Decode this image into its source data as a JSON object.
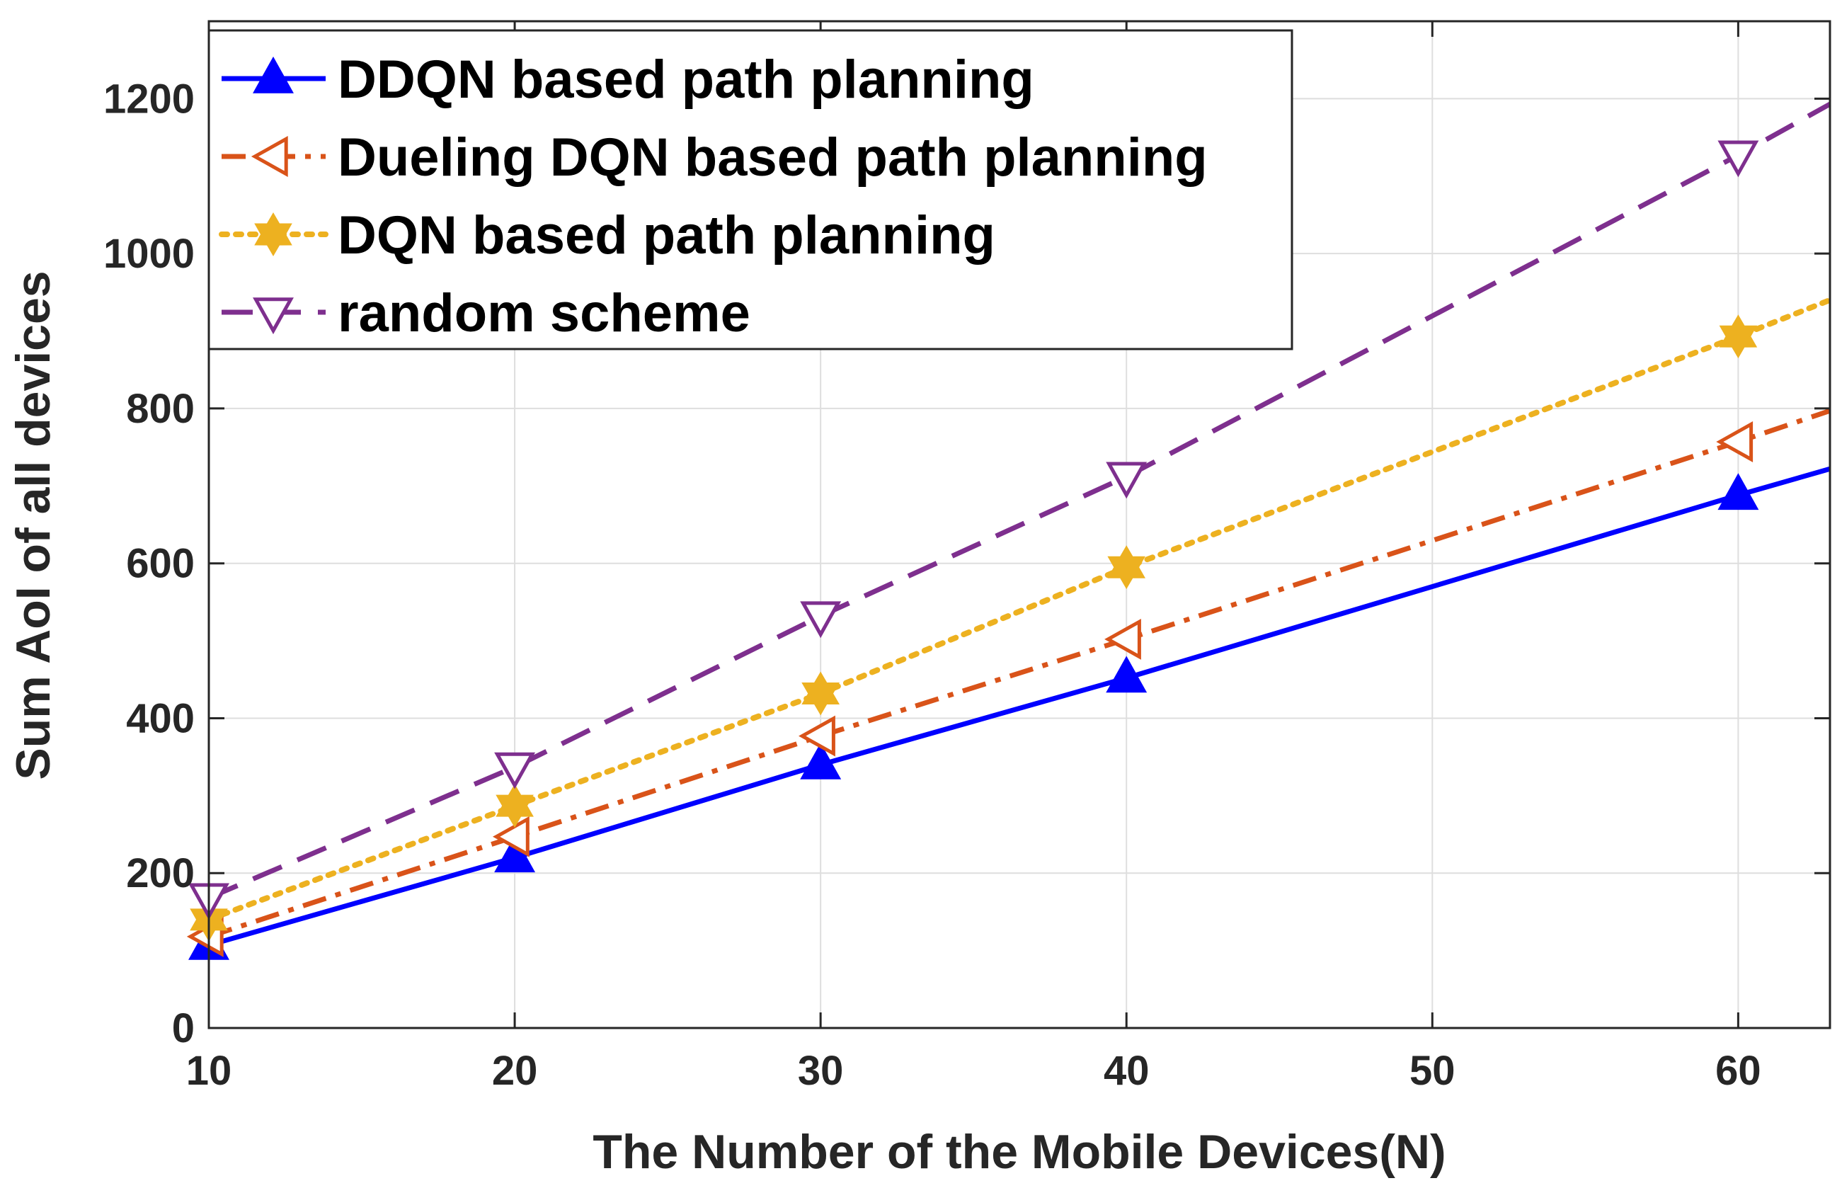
{
  "chart_data": {
    "type": "line",
    "title": "",
    "xlabel": "The Number of the Mobile Devices(N)",
    "ylabel": "Sum AoI of all devices",
    "xlim": [
      10,
      63
    ],
    "ylim": [
      0,
      1300
    ],
    "x_ticks": [
      10,
      20,
      30,
      40,
      50,
      60
    ],
    "y_ticks": [
      0,
      200,
      400,
      600,
      800,
      1000,
      1200
    ],
    "grid": true,
    "legend_position": "top-left",
    "series": [
      {
        "name": "DDQN based path planning",
        "color": "#0000ff",
        "line_style": "solid",
        "marker": "triangle-up",
        "marker_fill": "filled",
        "x": [
          10,
          20,
          30,
          40,
          60,
          63
        ],
        "values": [
          107,
          220,
          340,
          452,
          688,
          722
        ],
        "marker_points": [
          [
            10,
            107
          ],
          [
            20,
            220
          ],
          [
            30,
            340
          ],
          [
            40,
            452
          ],
          [
            60,
            688
          ]
        ]
      },
      {
        "name": "Dueling DQN based path planning",
        "color": "#d95319",
        "line_style": "dashdot",
        "marker": "triangle-left",
        "marker_fill": "open",
        "x": [
          10,
          20,
          30,
          40,
          60,
          63
        ],
        "values": [
          118,
          247,
          377,
          502,
          757,
          797
        ],
        "marker_points": [
          [
            10,
            118
          ],
          [
            20,
            247
          ],
          [
            30,
            377
          ],
          [
            40,
            502
          ],
          [
            60,
            757
          ]
        ]
      },
      {
        "name": "DQN based path planning",
        "color": "#edb120",
        "line_style": "dotted",
        "marker": "hexagram",
        "marker_fill": "filled",
        "x": [
          10,
          20,
          30,
          40,
          60,
          63
        ],
        "values": [
          140,
          287,
          432,
          595,
          893,
          940
        ],
        "marker_points": [
          [
            10,
            140
          ],
          [
            20,
            287
          ],
          [
            30,
            432
          ],
          [
            40,
            595
          ],
          [
            60,
            893
          ]
        ]
      },
      {
        "name": "random scheme",
        "color": "#7e2f8e",
        "line_style": "dashed",
        "marker": "triangle-down",
        "marker_fill": "open",
        "x": [
          10,
          20,
          30,
          40,
          60,
          63
        ],
        "values": [
          168,
          337,
          532,
          712,
          1127,
          1193
        ],
        "marker_points": [
          [
            10,
            168
          ],
          [
            20,
            337
          ],
          [
            30,
            532
          ],
          [
            40,
            712
          ],
          [
            60,
            1127
          ]
        ]
      }
    ]
  }
}
